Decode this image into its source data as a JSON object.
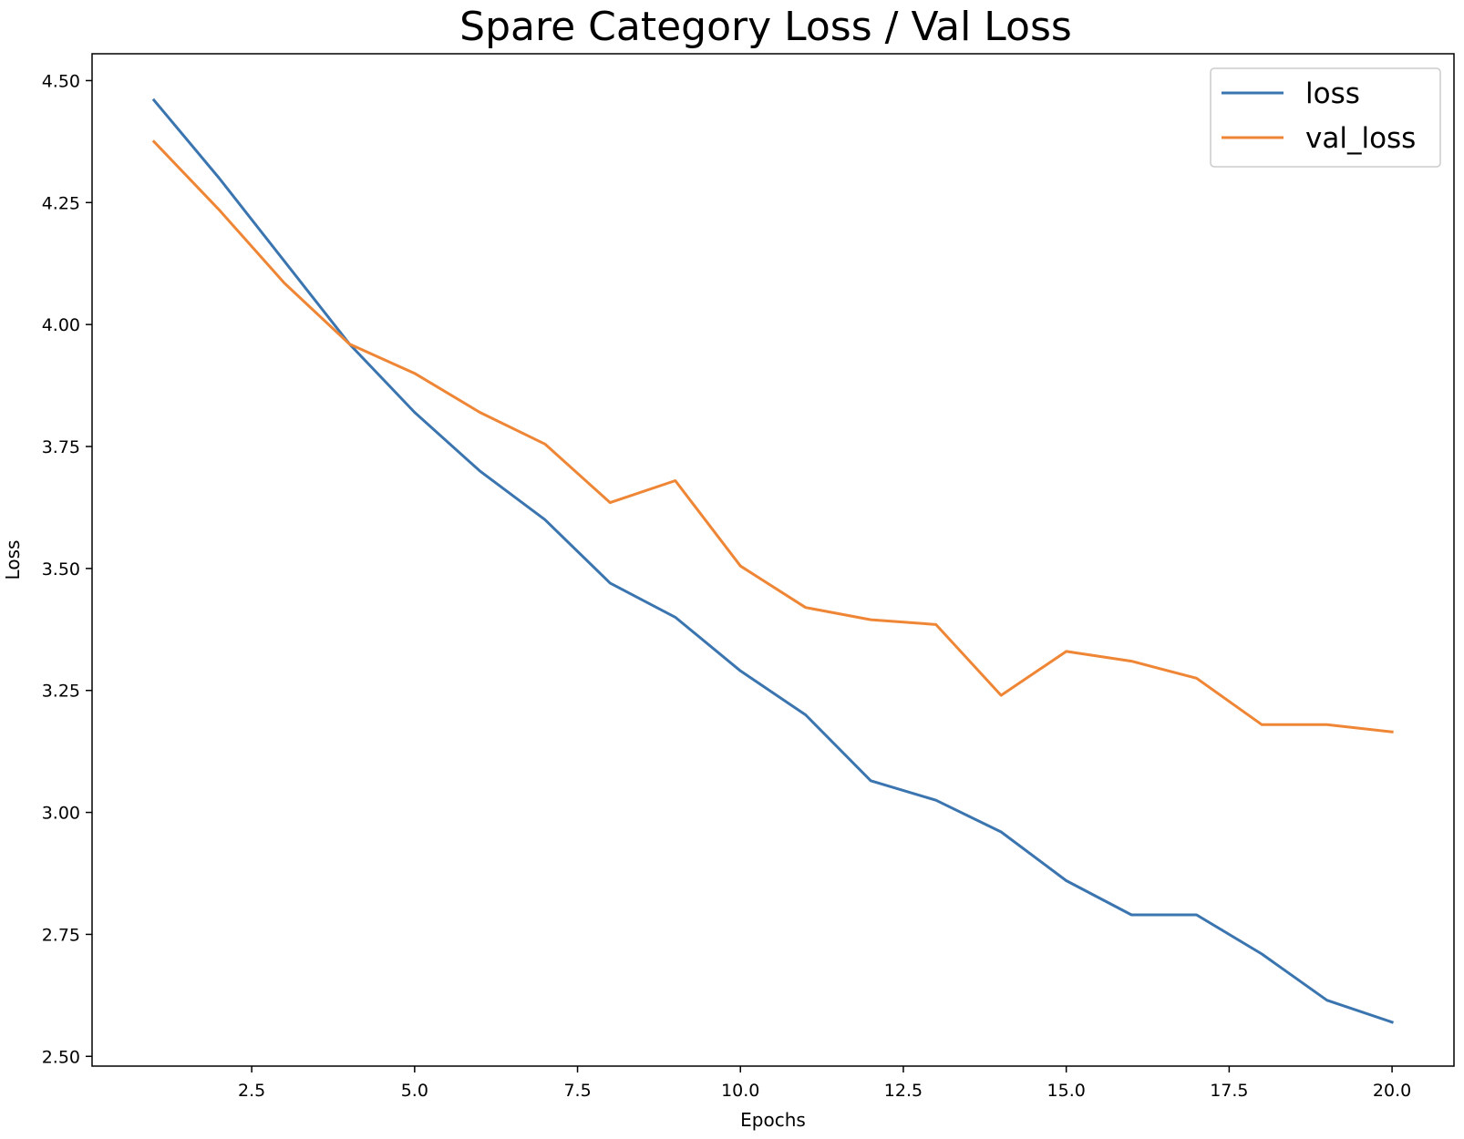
{
  "chart_data": {
    "type": "line",
    "title": "Spare Category Loss / Val Loss",
    "xlabel": "Epochs",
    "ylabel": "Loss",
    "x": [
      1,
      2,
      3,
      4,
      5,
      6,
      7,
      8,
      9,
      10,
      11,
      12,
      13,
      14,
      15,
      16,
      17,
      18,
      19,
      20
    ],
    "xlim": [
      0.05,
      20.95
    ],
    "ylim": [
      2.48,
      4.555
    ],
    "xticks": [
      {
        "value": 2.5,
        "label": "2.5"
      },
      {
        "value": 5.0,
        "label": "5.0"
      },
      {
        "value": 7.5,
        "label": "7.5"
      },
      {
        "value": 10.0,
        "label": "10.0"
      },
      {
        "value": 12.5,
        "label": "12.5"
      },
      {
        "value": 15.0,
        "label": "15.0"
      },
      {
        "value": 17.5,
        "label": "17.5"
      },
      {
        "value": 20.0,
        "label": "20.0"
      }
    ],
    "yticks": [
      {
        "value": 2.5,
        "label": "2.50"
      },
      {
        "value": 2.75,
        "label": "2.75"
      },
      {
        "value": 3.0,
        "label": "3.00"
      },
      {
        "value": 3.25,
        "label": "3.25"
      },
      {
        "value": 3.5,
        "label": "3.50"
      },
      {
        "value": 3.75,
        "label": "3.75"
      },
      {
        "value": 4.0,
        "label": "4.00"
      },
      {
        "value": 4.25,
        "label": "4.25"
      },
      {
        "value": 4.5,
        "label": "4.50"
      }
    ],
    "series": [
      {
        "name": "loss",
        "color": "#3b75af",
        "values": [
          4.46,
          4.3,
          4.13,
          3.96,
          3.82,
          3.7,
          3.6,
          3.47,
          3.4,
          3.29,
          3.2,
          3.065,
          3.025,
          2.96,
          2.86,
          2.79,
          2.79,
          2.71,
          2.615,
          2.57
        ]
      },
      {
        "name": "val_loss",
        "color": "#ef8636",
        "values": [
          4.375,
          4.235,
          4.085,
          3.96,
          3.9,
          3.82,
          3.755,
          3.635,
          3.68,
          3.505,
          3.42,
          3.395,
          3.385,
          3.24,
          3.33,
          3.31,
          3.275,
          3.18,
          3.18,
          3.165
        ]
      }
    ],
    "grid": false,
    "legend_position": "top-right"
  }
}
